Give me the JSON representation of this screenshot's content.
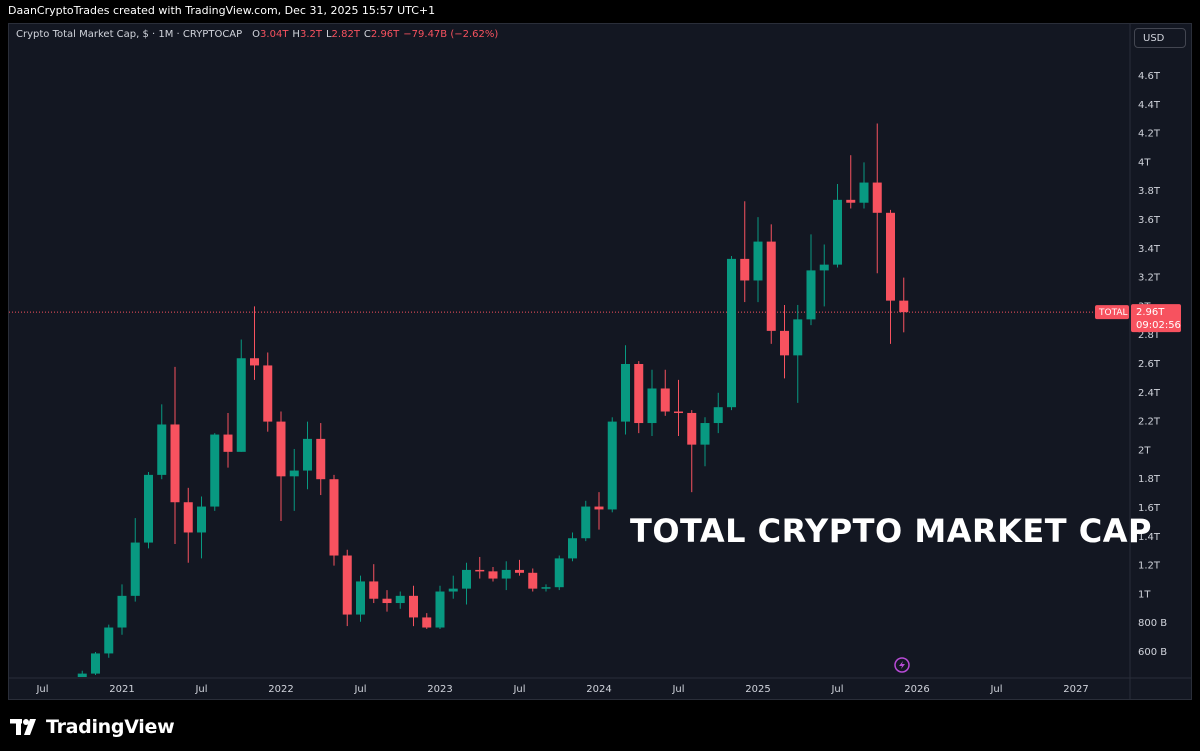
{
  "header": {
    "credit": "DaanCryptoTrades created with TradingView.com, Dec 31, 2025 15:57 UTC+1"
  },
  "legend": {
    "symbol": "Crypto Total Market Cap, $ · 1M · CRYPTOCAP",
    "o_label": "O",
    "o_value": "3.04T",
    "h_label": "H",
    "h_value": "3.2T",
    "l_label": "L",
    "l_value": "2.82T",
    "c_label": "C",
    "c_value": "2.96T",
    "change": "−79.47B (−2.62%)"
  },
  "currency_button": "USD",
  "price_tag": {
    "symbol": "TOTAL",
    "price": "2.96T",
    "countdown": "09:02:56"
  },
  "overlay_title": "TOTAL CRYPTO MARKET CAP",
  "footer": {
    "brand": "TradingView",
    "logo_icon": "tradingview-logo-icon"
  },
  "colors": {
    "background": "#131722",
    "up": "#089981",
    "down": "#f7525f",
    "text": "#d1d4dc"
  },
  "chart_data": {
    "type": "candlestick",
    "interval": "1M",
    "currency": "USD",
    "last_price": 2.96,
    "y_ticks": [
      "600 B",
      "800 B",
      "1T",
      "1.2T",
      "1.4T",
      "1.6T",
      "1.8T",
      "2T",
      "2.2T",
      "2.4T",
      "2.6T",
      "2.8T",
      "3T",
      "3.2T",
      "3.4T",
      "3.6T",
      "3.8T",
      "4T",
      "4.2T",
      "4.4T",
      "4.6T"
    ],
    "y_tick_values": [
      0.6,
      0.8,
      1.0,
      1.2,
      1.4,
      1.6,
      1.8,
      2.0,
      2.2,
      2.4,
      2.6,
      2.8,
      3.0,
      3.2,
      3.4,
      3.6,
      3.8,
      4.0,
      4.2,
      4.4,
      4.6
    ],
    "x_ticks": [
      "Jul",
      "2021",
      "Jul",
      "2022",
      "Jul",
      "2023",
      "Jul",
      "2024",
      "Jul",
      "2025",
      "Jul",
      "2026",
      "Jul",
      "2027"
    ],
    "x_tick_dates": [
      "2020-07",
      "2021-01",
      "2021-07",
      "2022-01",
      "2022-07",
      "2023-01",
      "2023-07",
      "2024-01",
      "2024-07",
      "2025-01",
      "2025-07",
      "2026-01",
      "2026-07",
      "2027-01"
    ],
    "candles": [
      {
        "d": "2020-10",
        "o": 0.34,
        "h": 0.47,
        "l": 0.33,
        "c": 0.45
      },
      {
        "d": "2020-11",
        "o": 0.45,
        "h": 0.6,
        "l": 0.44,
        "c": 0.59
      },
      {
        "d": "2020-12",
        "o": 0.59,
        "h": 0.79,
        "l": 0.56,
        "c": 0.77
      },
      {
        "d": "2021-01",
        "o": 0.77,
        "h": 1.07,
        "l": 0.72,
        "c": 0.99
      },
      {
        "d": "2021-02",
        "o": 0.99,
        "h": 1.53,
        "l": 0.95,
        "c": 1.36
      },
      {
        "d": "2021-03",
        "o": 1.36,
        "h": 1.85,
        "l": 1.32,
        "c": 1.83
      },
      {
        "d": "2021-04",
        "o": 1.83,
        "h": 2.32,
        "l": 1.8,
        "c": 2.18
      },
      {
        "d": "2021-05",
        "o": 2.18,
        "h": 2.58,
        "l": 1.35,
        "c": 1.64
      },
      {
        "d": "2021-06",
        "o": 1.64,
        "h": 1.74,
        "l": 1.22,
        "c": 1.43
      },
      {
        "d": "2021-07",
        "o": 1.43,
        "h": 1.68,
        "l": 1.25,
        "c": 1.61
      },
      {
        "d": "2021-08",
        "o": 1.61,
        "h": 2.12,
        "l": 1.58,
        "c": 2.11
      },
      {
        "d": "2021-09",
        "o": 2.11,
        "h": 2.26,
        "l": 1.88,
        "c": 1.99
      },
      {
        "d": "2021-10",
        "o": 1.99,
        "h": 2.77,
        "l": 1.99,
        "c": 2.64
      },
      {
        "d": "2021-11",
        "o": 2.64,
        "h": 3.0,
        "l": 2.49,
        "c": 2.59
      },
      {
        "d": "2021-12",
        "o": 2.59,
        "h": 2.68,
        "l": 2.13,
        "c": 2.2
      },
      {
        "d": "2022-01",
        "o": 2.2,
        "h": 2.27,
        "l": 1.51,
        "c": 1.82
      },
      {
        "d": "2022-02",
        "o": 1.82,
        "h": 2.01,
        "l": 1.58,
        "c": 1.86
      },
      {
        "d": "2022-03",
        "o": 1.86,
        "h": 2.2,
        "l": 1.73,
        "c": 2.08
      },
      {
        "d": "2022-04",
        "o": 2.08,
        "h": 2.19,
        "l": 1.69,
        "c": 1.8
      },
      {
        "d": "2022-05",
        "o": 1.8,
        "h": 1.83,
        "l": 1.2,
        "c": 1.27
      },
      {
        "d": "2022-06",
        "o": 1.27,
        "h": 1.31,
        "l": 0.78,
        "c": 0.86
      },
      {
        "d": "2022-07",
        "o": 0.86,
        "h": 1.13,
        "l": 0.81,
        "c": 1.09
      },
      {
        "d": "2022-08",
        "o": 1.09,
        "h": 1.21,
        "l": 0.94,
        "c": 0.97
      },
      {
        "d": "2022-09",
        "o": 0.97,
        "h": 1.03,
        "l": 0.88,
        "c": 0.94
      },
      {
        "d": "2022-10",
        "o": 0.94,
        "h": 1.02,
        "l": 0.9,
        "c": 0.99
      },
      {
        "d": "2022-11",
        "o": 0.99,
        "h": 1.06,
        "l": 0.78,
        "c": 0.84
      },
      {
        "d": "2022-12",
        "o": 0.84,
        "h": 0.87,
        "l": 0.76,
        "c": 0.77
      },
      {
        "d": "2023-01",
        "o": 0.77,
        "h": 1.06,
        "l": 0.76,
        "c": 1.02
      },
      {
        "d": "2023-02",
        "o": 1.02,
        "h": 1.13,
        "l": 0.97,
        "c": 1.04
      },
      {
        "d": "2023-03",
        "o": 1.04,
        "h": 1.22,
        "l": 0.93,
        "c": 1.17
      },
      {
        "d": "2023-04",
        "o": 1.17,
        "h": 1.26,
        "l": 1.11,
        "c": 1.16
      },
      {
        "d": "2023-05",
        "o": 1.16,
        "h": 1.19,
        "l": 1.09,
        "c": 1.11
      },
      {
        "d": "2023-06",
        "o": 1.11,
        "h": 1.23,
        "l": 1.03,
        "c": 1.17
      },
      {
        "d": "2023-07",
        "o": 1.17,
        "h": 1.24,
        "l": 1.13,
        "c": 1.15
      },
      {
        "d": "2023-08",
        "o": 1.15,
        "h": 1.18,
        "l": 1.02,
        "c": 1.04
      },
      {
        "d": "2023-09",
        "o": 1.04,
        "h": 1.07,
        "l": 1.02,
        "c": 1.05
      },
      {
        "d": "2023-10",
        "o": 1.05,
        "h": 1.27,
        "l": 1.03,
        "c": 1.25
      },
      {
        "d": "2023-11",
        "o": 1.25,
        "h": 1.43,
        "l": 1.23,
        "c": 1.39
      },
      {
        "d": "2023-12",
        "o": 1.39,
        "h": 1.65,
        "l": 1.37,
        "c": 1.61
      },
      {
        "d": "2024-01",
        "o": 1.61,
        "h": 1.71,
        "l": 1.45,
        "c": 1.59
      },
      {
        "d": "2024-02",
        "o": 1.59,
        "h": 2.23,
        "l": 1.57,
        "c": 2.2
      },
      {
        "d": "2024-03",
        "o": 2.2,
        "h": 2.73,
        "l": 2.11,
        "c": 2.6
      },
      {
        "d": "2024-04",
        "o": 2.6,
        "h": 2.62,
        "l": 2.12,
        "c": 2.19
      },
      {
        "d": "2024-05",
        "o": 2.19,
        "h": 2.56,
        "l": 2.1,
        "c": 2.43
      },
      {
        "d": "2024-06",
        "o": 2.43,
        "h": 2.56,
        "l": 2.24,
        "c": 2.27
      },
      {
        "d": "2024-07",
        "o": 2.27,
        "h": 2.49,
        "l": 2.1,
        "c": 2.26
      },
      {
        "d": "2024-08",
        "o": 2.26,
        "h": 2.28,
        "l": 1.71,
        "c": 2.04
      },
      {
        "d": "2024-09",
        "o": 2.04,
        "h": 2.23,
        "l": 1.89,
        "c": 2.19
      },
      {
        "d": "2024-10",
        "o": 2.19,
        "h": 2.4,
        "l": 2.12,
        "c": 2.3
      },
      {
        "d": "2024-11",
        "o": 2.3,
        "h": 3.35,
        "l": 2.28,
        "c": 3.33
      },
      {
        "d": "2024-12",
        "o": 3.33,
        "h": 3.73,
        "l": 3.03,
        "c": 3.18
      },
      {
        "d": "2025-01",
        "o": 3.18,
        "h": 3.62,
        "l": 3.03,
        "c": 3.45
      },
      {
        "d": "2025-02",
        "o": 3.45,
        "h": 3.57,
        "l": 2.74,
        "c": 2.83
      },
      {
        "d": "2025-03",
        "o": 2.83,
        "h": 3.01,
        "l": 2.5,
        "c": 2.66
      },
      {
        "d": "2025-04",
        "o": 2.66,
        "h": 3.01,
        "l": 2.33,
        "c": 2.91
      },
      {
        "d": "2025-05",
        "o": 2.91,
        "h": 3.5,
        "l": 2.87,
        "c": 3.25
      },
      {
        "d": "2025-06",
        "o": 3.25,
        "h": 3.43,
        "l": 3.0,
        "c": 3.29
      },
      {
        "d": "2025-07",
        "o": 3.29,
        "h": 3.85,
        "l": 3.27,
        "c": 3.74
      },
      {
        "d": "2025-08",
        "o": 3.74,
        "h": 4.05,
        "l": 3.68,
        "c": 3.72
      },
      {
        "d": "2025-09",
        "o": 3.72,
        "h": 4.0,
        "l": 3.68,
        "c": 3.86
      },
      {
        "d": "2025-10",
        "o": 3.86,
        "h": 4.27,
        "l": 3.23,
        "c": 3.65
      },
      {
        "d": "2025-11",
        "o": 3.65,
        "h": 3.67,
        "l": 2.74,
        "c": 3.04
      },
      {
        "d": "2025-12",
        "o": 3.04,
        "h": 3.2,
        "l": 2.82,
        "c": 2.96
      }
    ]
  }
}
